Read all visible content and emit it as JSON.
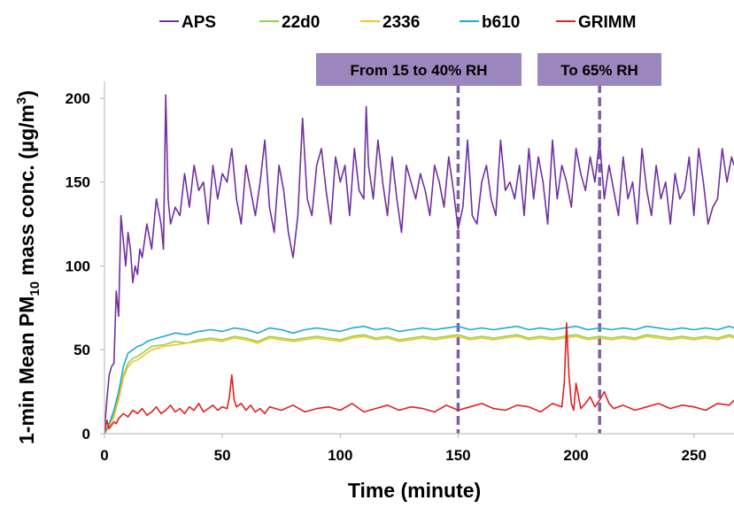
{
  "chart_data": {
    "type": "line",
    "title": "",
    "xlabel": "Time (minute)",
    "ylabel_parts": [
      "1-min Mean PM",
      "10",
      " mass conc. (µg/m",
      "3",
      ")"
    ],
    "xlim": [
      0,
      267
    ],
    "ylim": [
      0,
      210
    ],
    "xticks": [
      0,
      50,
      100,
      150,
      200,
      250
    ],
    "yticks": [
      0,
      50,
      100,
      150,
      200
    ],
    "grid": false,
    "legend_position": "top",
    "annotations": [
      {
        "text": "From 15 to 40% RH",
        "x": 150
      },
      {
        "text": "To 65% RH",
        "x": 210
      }
    ],
    "annotation_style": {
      "line_color": "#7e5fa8",
      "box_color": "#9b86bd"
    },
    "series": [
      {
        "name": "APS",
        "color": "#7030a0",
        "x": [
          0,
          1,
          2,
          3,
          4,
          5,
          6,
          7,
          8,
          9,
          10,
          11,
          12,
          13,
          14,
          15,
          16,
          18,
          20,
          22,
          24,
          25,
          26,
          27,
          28,
          30,
          32,
          34,
          36,
          38,
          40,
          42,
          44,
          46,
          48,
          50,
          52,
          54,
          56,
          58,
          60,
          62,
          64,
          66,
          68,
          70,
          72,
          74,
          76,
          78,
          80,
          82,
          84,
          86,
          88,
          90,
          92,
          94,
          96,
          98,
          100,
          102,
          104,
          106,
          108,
          110,
          111,
          112,
          114,
          116,
          118,
          120,
          122,
          124,
          126,
          128,
          130,
          132,
          134,
          136,
          138,
          140,
          142,
          144,
          146,
          148,
          150,
          152,
          154,
          156,
          158,
          160,
          162,
          164,
          166,
          168,
          170,
          172,
          174,
          176,
          178,
          180,
          182,
          184,
          186,
          188,
          190,
          192,
          194,
          196,
          198,
          200,
          202,
          204,
          206,
          208,
          210,
          212,
          214,
          216,
          218,
          220,
          222,
          224,
          226,
          228,
          230,
          232,
          234,
          236,
          238,
          240,
          242,
          244,
          246,
          248,
          250,
          252,
          254,
          256,
          258,
          260,
          262,
          264,
          266,
          267
        ],
        "values": [
          2,
          20,
          35,
          40,
          42,
          85,
          70,
          130,
          115,
          100,
          120,
          110,
          90,
          100,
          95,
          110,
          105,
          125,
          110,
          140,
          125,
          110,
          202,
          140,
          125,
          135,
          130,
          155,
          135,
          160,
          145,
          150,
          125,
          160,
          140,
          155,
          150,
          170,
          140,
          125,
          160,
          145,
          130,
          150,
          175,
          135,
          120,
          160,
          145,
          120,
          105,
          130,
          188,
          140,
          130,
          160,
          170,
          145,
          125,
          165,
          150,
          160,
          130,
          170,
          145,
          140,
          195,
          160,
          140,
          175,
          150,
          130,
          165,
          140,
          120,
          160,
          150,
          140,
          155,
          145,
          130,
          160,
          150,
          135,
          165,
          145,
          122,
          135,
          175,
          130,
          125,
          150,
          160,
          140,
          130,
          175,
          145,
          150,
          140,
          160,
          130,
          170,
          140,
          165,
          150,
          125,
          175,
          140,
          160,
          150,
          135,
          170,
          155,
          145,
          165,
          150,
          175,
          140,
          160,
          145,
          130,
          165,
          140,
          150,
          125,
          170,
          145,
          130,
          160,
          140,
          150,
          125,
          155,
          140,
          145,
          165,
          130,
          170,
          150,
          125,
          135,
          140,
          170,
          150,
          165,
          160
        ]
      },
      {
        "name": "22d0",
        "color": "#92d050",
        "x": [
          0,
          2,
          4,
          6,
          8,
          10,
          12,
          14,
          16,
          18,
          20,
          25,
          30,
          35,
          40,
          45,
          50,
          55,
          60,
          65,
          70,
          75,
          80,
          85,
          90,
          95,
          100,
          105,
          110,
          115,
          120,
          125,
          130,
          135,
          140,
          145,
          150,
          155,
          160,
          165,
          170,
          175,
          180,
          185,
          190,
          195,
          200,
          205,
          210,
          215,
          220,
          225,
          230,
          235,
          240,
          245,
          250,
          255,
          260,
          265,
          267
        ],
        "values": [
          0,
          5,
          12,
          22,
          35,
          42,
          45,
          46,
          48,
          50,
          52,
          53,
          55,
          54,
          56,
          57,
          56,
          58,
          57,
          55,
          58,
          57,
          56,
          57,
          58,
          57,
          56,
          58,
          59,
          57,
          58,
          56,
          57,
          58,
          57,
          58,
          59,
          57,
          58,
          57,
          58,
          59,
          57,
          58,
          57,
          58,
          59,
          57,
          58,
          57,
          58,
          57,
          59,
          58,
          57,
          58,
          57,
          58,
          57,
          59,
          58
        ]
      },
      {
        "name": "2336",
        "color": "#f5c32c",
        "x": [
          0,
          2,
          4,
          6,
          8,
          10,
          12,
          14,
          16,
          18,
          20,
          25,
          30,
          35,
          40,
          45,
          50,
          55,
          60,
          65,
          70,
          75,
          80,
          85,
          90,
          95,
          100,
          105,
          110,
          115,
          120,
          125,
          130,
          135,
          140,
          145,
          150,
          155,
          160,
          165,
          170,
          175,
          180,
          185,
          190,
          195,
          200,
          205,
          210,
          215,
          220,
          225,
          230,
          235,
          240,
          245,
          250,
          255,
          260,
          265,
          267
        ],
        "values": [
          0,
          4,
          10,
          20,
          33,
          40,
          43,
          44,
          46,
          48,
          50,
          52,
          53,
          54,
          55,
          56,
          55,
          57,
          56,
          54,
          57,
          56,
          55,
          56,
          57,
          56,
          55,
          57,
          58,
          56,
          57,
          55,
          56,
          57,
          56,
          57,
          58,
          56,
          57,
          56,
          57,
          58,
          56,
          57,
          56,
          57,
          58,
          56,
          57,
          56,
          57,
          56,
          58,
          57,
          56,
          57,
          56,
          57,
          56,
          58,
          57
        ]
      },
      {
        "name": "b610",
        "color": "#1fa9d9",
        "x": [
          0,
          2,
          4,
          6,
          8,
          10,
          12,
          14,
          16,
          18,
          20,
          25,
          30,
          35,
          40,
          45,
          50,
          55,
          60,
          65,
          70,
          75,
          80,
          85,
          90,
          95,
          100,
          105,
          110,
          115,
          120,
          125,
          130,
          135,
          140,
          145,
          150,
          155,
          160,
          165,
          170,
          175,
          180,
          185,
          190,
          195,
          200,
          205,
          210,
          215,
          220,
          225,
          230,
          235,
          240,
          245,
          250,
          255,
          260,
          265,
          267
        ],
        "values": [
          0,
          6,
          14,
          25,
          40,
          48,
          50,
          52,
          53,
          55,
          56,
          58,
          60,
          59,
          61,
          62,
          61,
          63,
          62,
          60,
          63,
          62,
          60,
          62,
          63,
          62,
          61,
          63,
          64,
          62,
          63,
          61,
          62,
          63,
          62,
          63,
          64,
          62,
          63,
          62,
          63,
          64,
          62,
          63,
          62,
          63,
          64,
          62,
          63,
          62,
          63,
          62,
          64,
          63,
          62,
          63,
          62,
          63,
          62,
          64,
          63
        ]
      },
      {
        "name": "GRIMM",
        "color": "#e02020",
        "x": [
          0,
          1,
          2,
          3,
          4,
          5,
          6,
          8,
          10,
          12,
          14,
          16,
          18,
          20,
          22,
          24,
          26,
          28,
          30,
          32,
          34,
          36,
          38,
          40,
          42,
          44,
          46,
          48,
          50,
          52,
          53,
          54,
          55,
          56,
          58,
          60,
          62,
          64,
          66,
          68,
          70,
          75,
          80,
          85,
          90,
          95,
          100,
          105,
          110,
          115,
          120,
          125,
          130,
          135,
          140,
          145,
          150,
          155,
          160,
          165,
          170,
          175,
          180,
          185,
          190,
          194,
          195,
          196,
          197,
          198,
          199,
          200,
          202,
          204,
          206,
          208,
          210,
          212,
          214,
          216,
          220,
          225,
          230,
          235,
          240,
          245,
          250,
          255,
          260,
          265,
          267
        ],
        "values": [
          0,
          8,
          3,
          5,
          7,
          6,
          9,
          12,
          10,
          14,
          12,
          15,
          11,
          13,
          16,
          12,
          14,
          17,
          13,
          15,
          12,
          16,
          14,
          18,
          13,
          15,
          17,
          14,
          16,
          15,
          22,
          35,
          20,
          16,
          18,
          14,
          17,
          13,
          15,
          12,
          16,
          14,
          17,
          13,
          15,
          16,
          14,
          18,
          13,
          15,
          17,
          14,
          16,
          15,
          13,
          17,
          14,
          16,
          18,
          15,
          14,
          17,
          16,
          13,
          18,
          16,
          30,
          66,
          35,
          18,
          14,
          30,
          15,
          18,
          22,
          16,
          20,
          25,
          18,
          15,
          17,
          14,
          16,
          18,
          15,
          17,
          16,
          14,
          18,
          17,
          20
        ]
      }
    ]
  }
}
